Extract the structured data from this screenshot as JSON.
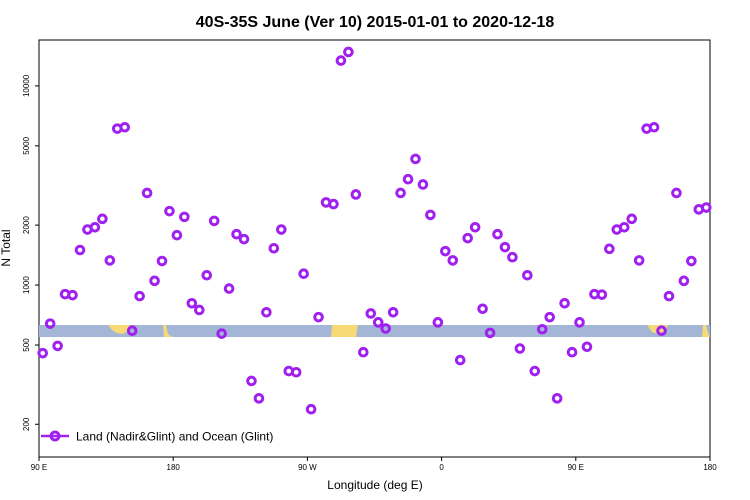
{
  "chart_data": {
    "type": "scatter",
    "title": "40S-35S June (Ver 10)   2015-01-01 to 2020-12-18",
    "xlabel": "Longitude (deg E)",
    "ylabel": "N Total",
    "y_scale": "log",
    "xlim": [
      90,
      540
    ],
    "ylim": [
      137,
      17000
    ],
    "x_tick_values": [
      90,
      180,
      270,
      360,
      450,
      540
    ],
    "x_tick_labels": [
      "90 E",
      "180",
      "90 W",
      "0",
      "90 E",
      "180"
    ],
    "y_tick_values": [
      200,
      500,
      1000,
      2000,
      5000,
      10000
    ],
    "y_tick_labels": [
      "200",
      "500",
      "1000",
      "2000",
      "5000",
      "10000"
    ],
    "legend_position": "bottom-left",
    "series": [
      {
        "name": "Land (Nadir&Glint) and Ocean (Glint)",
        "color": "#a020f0",
        "marker": "open-circle",
        "x": [
          92.5,
          97.5,
          102.5,
          107.5,
          112.5,
          117.5,
          122.5,
          127.5,
          132.5,
          137.5,
          142.5,
          147.5,
          152.5,
          157.5,
          162.5,
          167.5,
          172.5,
          177.5,
          182.5,
          187.5,
          192.5,
          197.5,
          202.5,
          207.5,
          212.5,
          217.5,
          222.5,
          227.5,
          232.5,
          237.5,
          242.5,
          247.5,
          252.5,
          257.5,
          262.5,
          267.5,
          272.5,
          277.5,
          282.5,
          287.5,
          292.5,
          297.5,
          302.5,
          307.5,
          312.5,
          317.5,
          322.5,
          327.5,
          332.5,
          337.5,
          342.5,
          347.5,
          352.5,
          357.5,
          362.5,
          367.5,
          372.5,
          377.5,
          382.5,
          387.5,
          392.5,
          397.5,
          402.5,
          407.5,
          412.5,
          417.5,
          422.5,
          427.5,
          432.5,
          437.5,
          442.5,
          447.5,
          452.5,
          457.5,
          462.5,
          467.5,
          472.5,
          477.5,
          482.5,
          487.5,
          492.5,
          497.5,
          502.5,
          507.5,
          512.5,
          517.5,
          522.5,
          527.5,
          532.5,
          537.5
        ],
        "y": [
          455,
          640,
          495,
          900,
          890,
          1500,
          1900,
          1950,
          2150,
          1330,
          6100,
          6200,
          590,
          880,
          2900,
          1050,
          1320,
          2350,
          1780,
          2200,
          810,
          750,
          1120,
          2100,
          570,
          960,
          1800,
          1700,
          330,
          270,
          730,
          1530,
          1900,
          370,
          365,
          1140,
          238,
          690,
          2600,
          2550,
          13400,
          14800,
          2850,
          460,
          720,
          650,
          605,
          730,
          2900,
          3400,
          4300,
          3200,
          2250,
          650,
          1480,
          1330,
          420,
          1720,
          1950,
          760,
          575,
          1800,
          1550,
          1380,
          480,
          1120,
          370,
          600,
          690,
          270,
          810,
          460,
          650,
          490,
          900,
          895,
          1520,
          1900,
          1950,
          2150,
          1330,
          6100,
          6200,
          590,
          880,
          2900,
          1050,
          1320,
          2400,
          2450
        ]
      }
    ]
  }
}
